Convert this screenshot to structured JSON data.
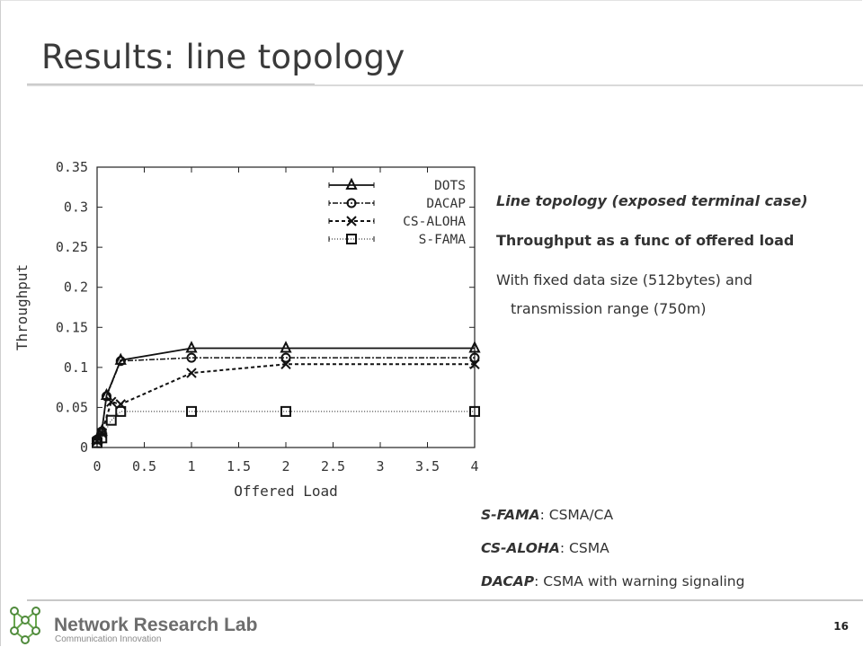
{
  "slide": {
    "title": "Results: line topology",
    "page_number": "16"
  },
  "bullets": [
    {
      "text": "Line topology (exposed terminal case)"
    },
    {
      "text": "Throughput as a func of offered load"
    },
    {
      "line1": "With fixed data size (512bytes) and",
      "line2": "transmission range (750m)"
    }
  ],
  "definitions": [
    {
      "term": "S-FAMA",
      "desc": ": CSMA/CA"
    },
    {
      "term": "CS-ALOHA",
      "desc": ": CSMA"
    },
    {
      "term": "DACAP",
      "desc": ": CSMA with warning signaling"
    }
  ],
  "footer": {
    "lab_name": "Network Research Lab",
    "lab_subtitle": "Communication Innovation"
  },
  "chart_data": {
    "type": "line",
    "xlabel": "Offered Load",
    "ylabel": "Throughput",
    "xlim": [
      0,
      4
    ],
    "ylim": [
      0,
      0.35
    ],
    "xticks": [
      "0",
      "0.5",
      "1",
      "1.5",
      "2",
      "2.5",
      "3",
      "3.5",
      "4"
    ],
    "yticks": [
      "0",
      "0.05",
      "0.1",
      "0.15",
      "0.2",
      "0.25",
      "0.3",
      "0.35"
    ],
    "grid": false,
    "legend_position": "top-right",
    "series": [
      {
        "name": "DOTS",
        "marker": "triangle",
        "dash": "",
        "points": [
          [
            0.0,
            0.01
          ],
          [
            0.05,
            0.02
          ],
          [
            0.1,
            0.065
          ],
          [
            0.25,
            0.109
          ],
          [
            1,
            0.124
          ],
          [
            2,
            0.124
          ],
          [
            4,
            0.124
          ]
        ]
      },
      {
        "name": "DACAP",
        "marker": "circle",
        "dash": "2 2 6 2",
        "points": [
          [
            0.0,
            0.01
          ],
          [
            0.05,
            0.02
          ],
          [
            0.1,
            0.064
          ],
          [
            0.25,
            0.108
          ],
          [
            1,
            0.112
          ],
          [
            2,
            0.112
          ],
          [
            4,
            0.112
          ]
        ]
      },
      {
        "name": "CS-ALOHA",
        "marker": "cross",
        "dash": "4 3",
        "points": [
          [
            0.0,
            0.008
          ],
          [
            0.05,
            0.018
          ],
          [
            0.15,
            0.057
          ],
          [
            0.25,
            0.054
          ],
          [
            1,
            0.093
          ],
          [
            2,
            0.104
          ],
          [
            4,
            0.104
          ]
        ]
      },
      {
        "name": "S-FAMA",
        "marker": "square",
        "dash": "1 2",
        "points": [
          [
            0.0,
            0.006
          ],
          [
            0.05,
            0.012
          ],
          [
            0.15,
            0.034
          ],
          [
            0.25,
            0.045
          ],
          [
            1,
            0.045
          ],
          [
            2,
            0.045
          ],
          [
            4,
            0.045
          ]
        ]
      }
    ]
  }
}
